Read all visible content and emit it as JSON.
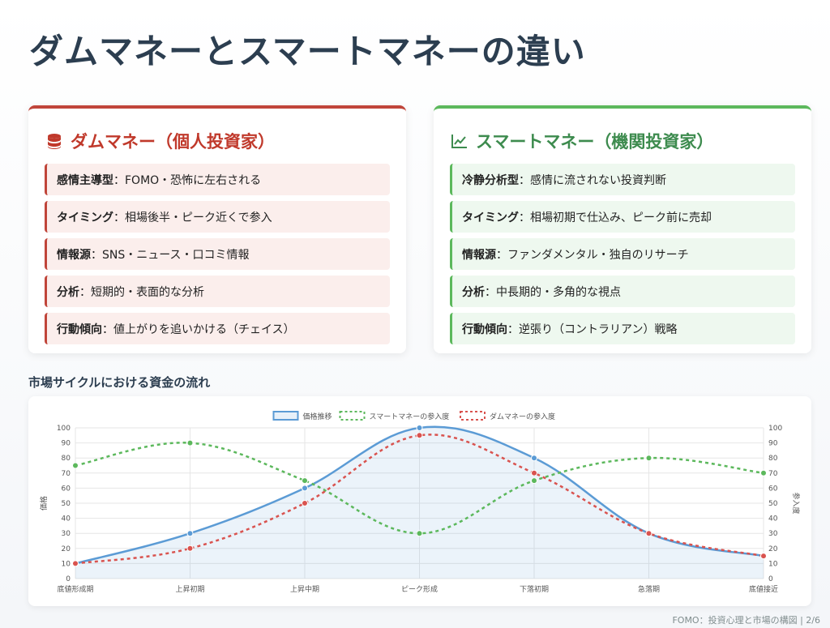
{
  "title": "ダムマネーとスマートマネーの違い",
  "dumb": {
    "heading": "ダムマネー（個人投資家）",
    "icon": "coins-icon",
    "color": "#c0392b",
    "items": [
      {
        "label": "感情主導型",
        "text": "：FOMO・恐怖に左右される"
      },
      {
        "label": "タイミング",
        "text": "：相場後半・ピーク近くで参入"
      },
      {
        "label": "情報源",
        "text": "：SNS・ニュース・口コミ情報"
      },
      {
        "label": "分析",
        "text": "：短期的・表面的な分析"
      },
      {
        "label": "行動傾向",
        "text": "：値上がりを追いかける（チェイス）"
      }
    ]
  },
  "smart": {
    "heading": "スマートマネー（機関投資家）",
    "icon": "chart-line-icon",
    "color": "#3d8b4e",
    "items": [
      {
        "label": "冷静分析型",
        "text": "：感情に流されない投資判断"
      },
      {
        "label": "タイミング",
        "text": "：相場初期で仕込み、ピーク前に売却"
      },
      {
        "label": "情報源",
        "text": "：ファンダメンタル・独自のリサーチ"
      },
      {
        "label": "分析",
        "text": "：中長期的・多角的な視点"
      },
      {
        "label": "行動傾向",
        "text": "：逆張り（コントラリアン）戦略"
      }
    ]
  },
  "section_title": "市場サイクルにおける資金の流れ",
  "footer": "FOMO：投資心理と市場の構図 | 2/6",
  "chart_data": {
    "type": "line",
    "categories": [
      "底値形成期",
      "上昇初期",
      "上昇中期",
      "ピーク形成",
      "下落初期",
      "急落期",
      "底値接近"
    ],
    "series": [
      {
        "name": "価格推移",
        "values": [
          10,
          30,
          60,
          100,
          80,
          30,
          15
        ],
        "color": "#5b9bd5",
        "style": "solid",
        "fill": true
      },
      {
        "name": "スマートマネーの参入度",
        "values": [
          75,
          90,
          65,
          30,
          65,
          80,
          70
        ],
        "color": "#5cb85c",
        "style": "dashed"
      },
      {
        "name": "ダムマネーの参入度",
        "values": [
          10,
          20,
          50,
          95,
          70,
          30,
          15
        ],
        "color": "#d9534f",
        "style": "dashed"
      }
    ],
    "ylabel_left": "価格",
    "ylabel_right": "参入度",
    "ylim": [
      0,
      100
    ],
    "yticks": [
      0,
      10,
      20,
      30,
      40,
      50,
      60,
      70,
      80,
      90,
      100
    ],
    "grid": true,
    "legend": "top-center"
  }
}
